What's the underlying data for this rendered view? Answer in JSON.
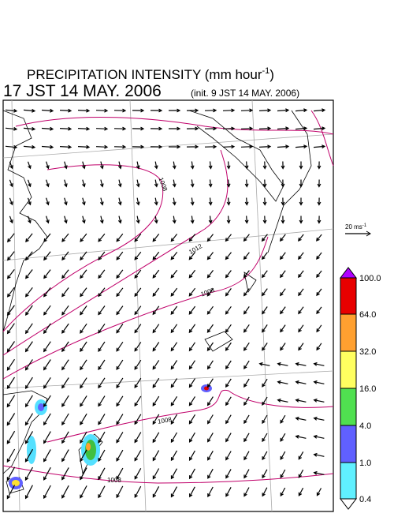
{
  "header": {
    "title": "PRECIPITATION INTENSITY (mm hour",
    "title_exp": "-1",
    "title_end": ")",
    "valid_time": "17 JST 14 MAY. 2006",
    "init_time": "(init. 9 JST 14 MAY. 2006)"
  },
  "wind_scale": {
    "label": "20 ms",
    "label_exp": "-1"
  },
  "colorbar": {
    "labels": [
      "100.0",
      "64.0",
      "32.0",
      "16.0",
      "4.0",
      "1.0",
      "0.4"
    ]
  },
  "isobar_labels": [
    "1008",
    "1012",
    "1008",
    "1008",
    "1008"
  ]
}
